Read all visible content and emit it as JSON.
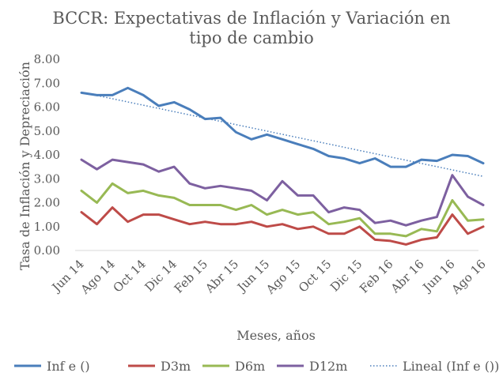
{
  "chart_data": {
    "type": "line",
    "title_lines": [
      "BCCR: Expectativas de Inflación y Variación en",
      "tipo de cambio"
    ],
    "xlabel": "Meses, años",
    "ylabel": "Tasa de Inflación y Depreciación",
    "ylim": [
      0,
      8
    ],
    "yticks": [
      "0.00",
      "1.00",
      "2.00",
      "3.00",
      "4.00",
      "5.00",
      "6.00",
      "7.00",
      "8.00"
    ],
    "n_points": 27,
    "x_tick_labels": [
      {
        "index": 0,
        "label": "Jun 14"
      },
      {
        "index": 2,
        "label": "Ago 14"
      },
      {
        "index": 4,
        "label": "Oct 14"
      },
      {
        "index": 6,
        "label": "Dic 14"
      },
      {
        "index": 8,
        "label": "Feb 15"
      },
      {
        "index": 10,
        "label": "Abr 15"
      },
      {
        "index": 12,
        "label": "Jun 15"
      },
      {
        "index": 14,
        "label": "Ago 15"
      },
      {
        "index": 16,
        "label": "Oct 15"
      },
      {
        "index": 18,
        "label": "Dic 15"
      },
      {
        "index": 20,
        "label": "Feb 16"
      },
      {
        "index": 22,
        "label": "Abr 16"
      },
      {
        "index": 24,
        "label": "Jun 16"
      },
      {
        "index": 26,
        "label": "Ago 16"
      }
    ],
    "series": [
      {
        "name": "Inf e ()",
        "color": "#4a7ebb",
        "values": [
          6.6,
          6.5,
          6.5,
          6.8,
          6.5,
          6.05,
          6.2,
          5.9,
          5.5,
          5.55,
          4.95,
          4.65,
          4.85,
          4.65,
          4.45,
          4.25,
          3.95,
          3.85,
          3.65,
          3.85,
          3.5,
          3.5,
          3.8,
          3.75,
          4.0,
          3.95,
          3.65
        ]
      },
      {
        "name": "D3m",
        "color": "#be4b48",
        "values": [
          1.6,
          1.1,
          1.8,
          1.2,
          1.5,
          1.5,
          1.3,
          1.1,
          1.2,
          1.1,
          1.1,
          1.2,
          1.0,
          1.1,
          0.9,
          1.0,
          0.7,
          0.7,
          1.0,
          0.45,
          0.4,
          0.25,
          0.45,
          0.55,
          1.5,
          0.7,
          1.0
        ]
      },
      {
        "name": "D6m",
        "color": "#98b954",
        "values": [
          2.5,
          2.0,
          2.8,
          2.4,
          2.5,
          2.3,
          2.2,
          1.9,
          1.9,
          1.9,
          1.7,
          1.9,
          1.5,
          1.7,
          1.5,
          1.6,
          1.1,
          1.2,
          1.35,
          0.7,
          0.7,
          0.6,
          0.9,
          0.8,
          2.1,
          1.25,
          1.3
        ]
      },
      {
        "name": "D12m",
        "color": "#7d60a0",
        "values": [
          3.8,
          3.4,
          3.8,
          3.7,
          3.6,
          3.3,
          3.5,
          2.8,
          2.6,
          2.7,
          2.6,
          2.5,
          2.1,
          2.9,
          2.3,
          2.3,
          1.6,
          1.8,
          1.7,
          1.15,
          1.25,
          1.05,
          1.25,
          1.4,
          3.15,
          2.25,
          1.9
        ]
      }
    ],
    "trendline": {
      "name": "Lineal (Inf e ())",
      "color": "#4a7ebb",
      "of_series": "Inf e ()",
      "start": 6.62,
      "end": 3.1
    }
  }
}
